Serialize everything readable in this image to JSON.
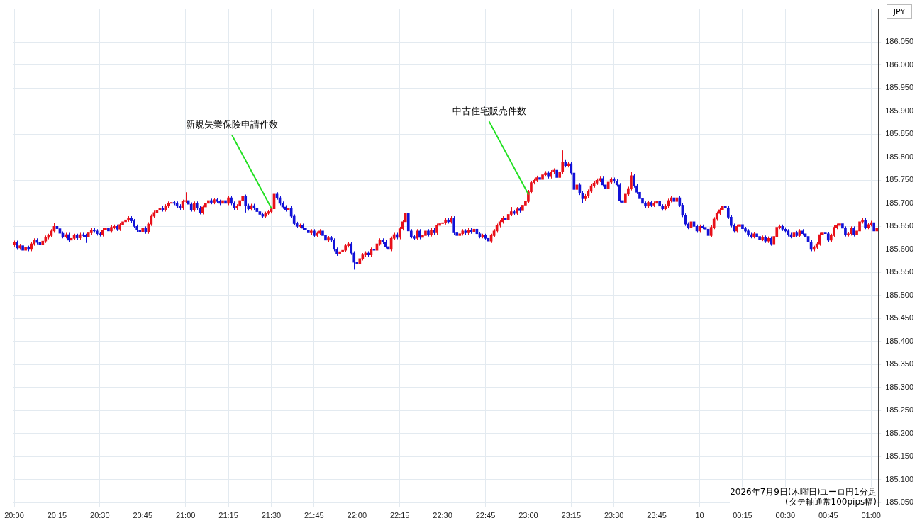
{
  "chart_data": {
    "type": "candlestick",
    "ylabel": "JPY",
    "categories": [
      "20:00",
      null,
      null,
      null,
      null,
      null,
      null,
      null,
      null,
      null,
      null,
      null,
      null,
      null,
      null,
      "20:15",
      null,
      null,
      null,
      null,
      null,
      null,
      null,
      null,
      null,
      null,
      null,
      null,
      null,
      null,
      "20:30",
      null,
      null,
      null,
      null,
      null,
      null,
      null,
      null,
      null,
      null,
      null,
      null,
      null,
      null,
      "20:45",
      null,
      null,
      null,
      null,
      null,
      null,
      null,
      null,
      null,
      null,
      null,
      null,
      null,
      null,
      "21:00",
      null,
      null,
      null,
      null,
      null,
      null,
      null,
      null,
      null,
      null,
      null,
      null,
      null,
      null,
      "21:15",
      null,
      null,
      null,
      null,
      null,
      null,
      null,
      null,
      null,
      null,
      null,
      null,
      null,
      null,
      "21:30",
      null,
      null,
      null,
      null,
      null,
      null,
      null,
      null,
      null,
      null,
      null,
      null,
      null,
      null,
      "21:45",
      null,
      null,
      null,
      null,
      null,
      null,
      null,
      null,
      null,
      null,
      null,
      null,
      null,
      null,
      "22:00",
      null,
      null,
      null,
      null,
      null,
      null,
      null,
      null,
      null,
      null,
      null,
      null,
      null,
      null,
      "22:15",
      null,
      null,
      null,
      null,
      null,
      null,
      null,
      null,
      null,
      null,
      null,
      null,
      null,
      null,
      "22:30",
      null,
      null,
      null,
      null,
      null,
      null,
      null,
      null,
      null,
      null,
      null,
      null,
      null,
      null,
      "22:45",
      null,
      null,
      null,
      null,
      null,
      null,
      null,
      null,
      null,
      null,
      null,
      null,
      null,
      null,
      "23:00",
      null,
      null,
      null,
      null,
      null,
      null,
      null,
      null,
      null,
      null,
      null,
      null,
      null,
      null,
      "23:15",
      null,
      null,
      null,
      null,
      null,
      null,
      null,
      null,
      null,
      null,
      null,
      null,
      null,
      null,
      "23:30",
      null,
      null,
      null,
      null,
      null,
      null,
      null,
      null,
      null,
      null,
      null,
      null,
      null,
      null,
      "23:45",
      null,
      null,
      null,
      null,
      null,
      null,
      null,
      null,
      null,
      null,
      null,
      null,
      null,
      null,
      "10",
      null,
      null,
      null,
      null,
      null,
      null,
      null,
      null,
      null,
      null,
      null,
      null,
      null,
      null,
      "00:15",
      null,
      null,
      null,
      null,
      null,
      null,
      null,
      null,
      null,
      null,
      null,
      null,
      null,
      null,
      "00:30",
      null,
      null,
      null,
      null,
      null,
      null,
      null,
      null,
      null,
      null,
      null,
      null,
      null,
      null,
      "00:45",
      null,
      null,
      null,
      null,
      null,
      null,
      null,
      null,
      null,
      null,
      null,
      null,
      null,
      null,
      "01:00",
      null,
      null
    ],
    "ohlc": [
      [
        185.61,
        185.619,
        185.606,
        185.615
      ],
      [
        185.615,
        185.619,
        185.599,
        185.603
      ],
      [
        185.603,
        185.612,
        185.599,
        185.608
      ],
      [
        185.608,
        185.612,
        185.594,
        185.598
      ],
      [
        185.598,
        185.608,
        185.594,
        185.604
      ],
      [
        185.604,
        185.608,
        185.596,
        185.6
      ],
      [
        185.6,
        185.616,
        185.596,
        185.612
      ],
      [
        185.612,
        185.624,
        185.608,
        185.62
      ],
      [
        185.62,
        185.624,
        185.611,
        185.615
      ],
      [
        185.615,
        185.619,
        185.606,
        185.61
      ],
      [
        185.61,
        185.622,
        185.606,
        185.618
      ],
      [
        185.618,
        185.63,
        185.614,
        185.626
      ],
      [
        185.626,
        185.634,
        185.622,
        185.63
      ],
      [
        185.63,
        185.644,
        185.626,
        185.64
      ],
      [
        185.64,
        185.658,
        185.636,
        185.65
      ],
      [
        185.65,
        185.654,
        185.641,
        185.645
      ],
      [
        185.645,
        185.649,
        185.631,
        185.635
      ],
      [
        185.635,
        185.639,
        185.624,
        185.628
      ],
      [
        185.628,
        185.636,
        185.624,
        185.632
      ],
      [
        185.632,
        185.636,
        185.616,
        185.62
      ],
      [
        185.62,
        185.628,
        185.616,
        185.624
      ],
      [
        185.624,
        185.634,
        185.62,
        185.63
      ],
      [
        185.63,
        185.634,
        185.621,
        185.625
      ],
      [
        185.625,
        185.636,
        185.621,
        185.632
      ],
      [
        185.632,
        185.636,
        185.626,
        185.63
      ],
      [
        185.63,
        185.634,
        185.614,
        185.628
      ],
      [
        185.628,
        185.64,
        185.624,
        185.636
      ],
      [
        185.636,
        185.646,
        185.632,
        185.642
      ],
      [
        185.642,
        185.646,
        185.636,
        185.64
      ],
      [
        185.64,
        185.644,
        185.63,
        185.634
      ],
      [
        185.634,
        185.638,
        185.628,
        185.632
      ],
      [
        185.632,
        185.646,
        185.628,
        185.642
      ],
      [
        185.642,
        185.65,
        185.638,
        185.646
      ],
      [
        185.646,
        185.65,
        185.636,
        185.64
      ],
      [
        185.64,
        185.652,
        185.636,
        185.648
      ],
      [
        185.648,
        185.654,
        185.644,
        185.65
      ],
      [
        185.65,
        185.654,
        185.64,
        185.644
      ],
      [
        185.644,
        185.658,
        185.64,
        185.654
      ],
      [
        185.654,
        185.664,
        185.65,
        185.66
      ],
      [
        185.66,
        185.668,
        185.656,
        185.664
      ],
      [
        185.664,
        185.672,
        185.66,
        185.668
      ],
      [
        185.668,
        185.672,
        185.658,
        185.662
      ],
      [
        185.662,
        185.666,
        185.646,
        185.65
      ],
      [
        185.65,
        185.654,
        185.638,
        185.642
      ],
      [
        185.642,
        185.646,
        185.634,
        185.638
      ],
      [
        185.638,
        185.65,
        185.634,
        185.646
      ],
      [
        185.646,
        185.65,
        185.634,
        185.638
      ],
      [
        185.638,
        185.659,
        185.634,
        185.655
      ],
      [
        185.655,
        185.676,
        185.651,
        185.672
      ],
      [
        185.672,
        185.684,
        185.668,
        185.68
      ],
      [
        185.68,
        185.689,
        185.676,
        185.685
      ],
      [
        185.685,
        185.694,
        185.681,
        185.69
      ],
      [
        185.69,
        185.694,
        185.682,
        185.686
      ],
      [
        185.686,
        185.698,
        185.682,
        185.694
      ],
      [
        185.694,
        185.704,
        185.69,
        185.7
      ],
      [
        185.7,
        185.706,
        185.696,
        185.702
      ],
      [
        185.702,
        185.706,
        185.696,
        185.7
      ],
      [
        185.7,
        185.704,
        185.69,
        185.694
      ],
      [
        185.694,
        185.698,
        185.686,
        185.69
      ],
      [
        185.69,
        185.708,
        185.686,
        185.704
      ],
      [
        185.704,
        185.724,
        185.7,
        185.706
      ],
      [
        185.706,
        185.71,
        185.694,
        185.698
      ],
      [
        185.698,
        185.702,
        185.682,
        185.686
      ],
      [
        185.686,
        185.704,
        185.682,
        185.7
      ],
      [
        185.7,
        185.704,
        185.686,
        185.69
      ],
      [
        185.69,
        185.694,
        185.676,
        185.68
      ],
      [
        185.68,
        185.696,
        185.676,
        185.692
      ],
      [
        185.692,
        185.704,
        185.688,
        185.7
      ],
      [
        185.7,
        185.71,
        185.696,
        185.706
      ],
      [
        185.706,
        185.71,
        185.698,
        185.702
      ],
      [
        185.702,
        185.712,
        185.698,
        185.708
      ],
      [
        185.708,
        185.712,
        185.7,
        185.704
      ],
      [
        185.704,
        185.708,
        185.696,
        185.7
      ],
      [
        185.7,
        185.71,
        185.696,
        185.706
      ],
      [
        185.706,
        185.71,
        185.696,
        185.7
      ],
      [
        185.7,
        185.716,
        185.696,
        185.712
      ],
      [
        185.712,
        185.716,
        185.696,
        185.7
      ],
      [
        185.7,
        185.704,
        185.686,
        185.69
      ],
      [
        185.69,
        185.698,
        185.686,
        185.694
      ],
      [
        185.694,
        185.71,
        185.69,
        185.706
      ],
      [
        185.706,
        185.722,
        185.702,
        185.715
      ],
      [
        185.715,
        185.719,
        185.68,
        185.695
      ],
      [
        185.695,
        185.699,
        185.684,
        185.688
      ],
      [
        185.688,
        185.699,
        185.684,
        185.695
      ],
      [
        185.695,
        185.699,
        185.686,
        185.69
      ],
      [
        185.69,
        185.694,
        185.678,
        185.682
      ],
      [
        185.682,
        185.686,
        185.672,
        185.676
      ],
      [
        185.676,
        185.68,
        185.668,
        185.672
      ],
      [
        185.672,
        185.682,
        185.668,
        185.678
      ],
      [
        185.678,
        185.686,
        185.674,
        185.682
      ],
      [
        185.682,
        185.692,
        185.678,
        185.688
      ],
      [
        185.688,
        185.724,
        185.684,
        185.72
      ],
      [
        185.72,
        185.724,
        185.708,
        185.712
      ],
      [
        185.712,
        185.716,
        185.696,
        185.7
      ],
      [
        185.7,
        185.704,
        185.688,
        185.692
      ],
      [
        185.692,
        185.696,
        185.682,
        185.686
      ],
      [
        185.686,
        185.694,
        185.682,
        185.69
      ],
      [
        185.69,
        185.694,
        185.668,
        185.672
      ],
      [
        185.672,
        185.676,
        185.652,
        185.656
      ],
      [
        185.656,
        185.66,
        185.646,
        185.65
      ],
      [
        185.65,
        185.656,
        185.646,
        185.652
      ],
      [
        185.652,
        185.656,
        185.642,
        185.646
      ],
      [
        185.646,
        185.65,
        185.638,
        185.642
      ],
      [
        185.642,
        185.646,
        185.632,
        185.636
      ],
      [
        185.636,
        185.644,
        185.632,
        185.64
      ],
      [
        185.64,
        185.644,
        185.626,
        185.63
      ],
      [
        185.63,
        185.639,
        185.626,
        185.635
      ],
      [
        185.635,
        185.644,
        185.631,
        185.64
      ],
      [
        185.64,
        185.644,
        185.626,
        185.63
      ],
      [
        185.63,
        185.634,
        185.616,
        185.62
      ],
      [
        185.62,
        185.629,
        185.616,
        185.625
      ],
      [
        185.625,
        185.629,
        185.616,
        185.62
      ],
      [
        185.62,
        185.624,
        185.596,
        185.6
      ],
      [
        185.6,
        185.604,
        185.586,
        185.59
      ],
      [
        185.59,
        185.599,
        185.586,
        185.595
      ],
      [
        185.595,
        185.602,
        185.591,
        185.598
      ],
      [
        185.598,
        185.612,
        185.594,
        185.608
      ],
      [
        185.608,
        185.616,
        185.604,
        185.612
      ],
      [
        185.612,
        185.616,
        185.588,
        185.592
      ],
      [
        185.592,
        185.596,
        185.556,
        185.572
      ],
      [
        185.572,
        185.576,
        185.564,
        185.568
      ],
      [
        185.568,
        185.584,
        185.564,
        185.58
      ],
      [
        185.58,
        185.592,
        185.576,
        185.588
      ],
      [
        185.588,
        185.596,
        185.584,
        185.592
      ],
      [
        185.592,
        185.596,
        185.584,
        185.588
      ],
      [
        185.588,
        185.604,
        185.584,
        185.6
      ],
      [
        185.6,
        185.604,
        185.594,
        185.598
      ],
      [
        185.598,
        185.616,
        185.594,
        185.612
      ],
      [
        185.612,
        185.624,
        185.608,
        185.62
      ],
      [
        185.62,
        185.624,
        185.612,
        185.616
      ],
      [
        185.616,
        185.62,
        185.602,
        185.606
      ],
      [
        185.606,
        185.61,
        185.596,
        185.6
      ],
      [
        185.6,
        185.628,
        185.596,
        185.624
      ],
      [
        185.624,
        185.636,
        185.62,
        185.632
      ],
      [
        185.632,
        185.636,
        185.622,
        185.626
      ],
      [
        185.626,
        185.649,
        185.622,
        185.645
      ],
      [
        185.645,
        185.664,
        185.641,
        185.66
      ],
      [
        185.66,
        185.69,
        185.656,
        185.678
      ],
      [
        185.678,
        185.682,
        185.605,
        185.64
      ],
      [
        185.64,
        185.644,
        185.624,
        185.628
      ],
      [
        185.628,
        185.632,
        185.62,
        185.624
      ],
      [
        185.624,
        185.644,
        185.62,
        185.64
      ],
      [
        185.64,
        185.644,
        185.622,
        185.626
      ],
      [
        185.626,
        185.634,
        185.622,
        185.63
      ],
      [
        185.63,
        185.644,
        185.626,
        185.64
      ],
      [
        185.64,
        185.644,
        185.628,
        185.632
      ],
      [
        185.632,
        185.646,
        185.628,
        185.642
      ],
      [
        185.642,
        185.646,
        185.632,
        185.636
      ],
      [
        185.636,
        185.656,
        185.632,
        185.652
      ],
      [
        185.652,
        185.66,
        185.648,
        185.656
      ],
      [
        185.656,
        185.662,
        185.652,
        185.658
      ],
      [
        185.658,
        185.668,
        185.654,
        185.664
      ],
      [
        185.664,
        185.668,
        185.656,
        185.66
      ],
      [
        185.66,
        185.672,
        185.656,
        185.668
      ],
      [
        185.668,
        185.672,
        185.632,
        185.636
      ],
      [
        185.636,
        185.64,
        185.626,
        185.63
      ],
      [
        185.63,
        185.638,
        185.626,
        185.634
      ],
      [
        185.634,
        185.644,
        185.63,
        185.64
      ],
      [
        185.64,
        185.644,
        185.632,
        185.636
      ],
      [
        185.636,
        185.646,
        185.632,
        185.642
      ],
      [
        185.642,
        185.646,
        185.634,
        185.638
      ],
      [
        185.638,
        185.648,
        185.634,
        185.644
      ],
      [
        185.644,
        185.648,
        185.63,
        185.634
      ],
      [
        185.634,
        185.638,
        185.624,
        185.628
      ],
      [
        185.628,
        185.634,
        185.624,
        185.63
      ],
      [
        185.63,
        185.634,
        185.62,
        185.624
      ],
      [
        185.624,
        185.628,
        185.604,
        185.618
      ],
      [
        185.618,
        185.634,
        185.614,
        185.63
      ],
      [
        185.63,
        185.644,
        185.626,
        185.64
      ],
      [
        185.64,
        185.656,
        185.636,
        185.652
      ],
      [
        185.652,
        185.664,
        185.648,
        185.66
      ],
      [
        185.66,
        185.672,
        185.656,
        185.668
      ],
      [
        185.668,
        185.672,
        185.66,
        185.664
      ],
      [
        185.664,
        185.68,
        185.66,
        185.676
      ],
      [
        185.676,
        185.692,
        185.672,
        185.682
      ],
      [
        185.682,
        185.686,
        185.674,
        185.678
      ],
      [
        185.678,
        185.692,
        185.674,
        185.688
      ],
      [
        185.688,
        185.692,
        185.68,
        185.684
      ],
      [
        185.684,
        185.7,
        185.68,
        185.696
      ],
      [
        185.696,
        185.708,
        185.692,
        185.704
      ],
      [
        185.704,
        185.729,
        185.7,
        185.725
      ],
      [
        185.725,
        185.749,
        185.721,
        185.745
      ],
      [
        185.745,
        185.754,
        185.741,
        185.75
      ],
      [
        185.75,
        185.76,
        185.746,
        185.756
      ],
      [
        185.756,
        185.76,
        185.748,
        185.752
      ],
      [
        185.752,
        185.766,
        185.748,
        185.762
      ],
      [
        185.762,
        185.77,
        185.758,
        185.766
      ],
      [
        185.766,
        185.77,
        185.754,
        185.758
      ],
      [
        185.758,
        185.772,
        185.754,
        185.768
      ],
      [
        185.768,
        185.776,
        185.764,
        185.772
      ],
      [
        185.772,
        185.776,
        185.752,
        185.756
      ],
      [
        185.756,
        185.772,
        185.752,
        185.768
      ],
      [
        185.768,
        185.815,
        185.764,
        185.79
      ],
      [
        185.79,
        185.794,
        185.778,
        185.782
      ],
      [
        185.782,
        185.79,
        185.778,
        185.786
      ],
      [
        185.786,
        185.79,
        185.762,
        185.766
      ],
      [
        185.766,
        185.77,
        185.726,
        185.73
      ],
      [
        185.73,
        185.744,
        185.726,
        185.74
      ],
      [
        185.74,
        185.744,
        185.718,
        185.722
      ],
      [
        185.722,
        185.726,
        185.7,
        185.71
      ],
      [
        185.71,
        185.72,
        185.706,
        185.716
      ],
      [
        185.716,
        185.73,
        185.712,
        185.726
      ],
      [
        185.726,
        185.742,
        185.722,
        185.738
      ],
      [
        185.738,
        185.748,
        185.734,
        185.744
      ],
      [
        185.744,
        185.754,
        185.74,
        185.75
      ],
      [
        185.75,
        185.758,
        185.746,
        185.754
      ],
      [
        185.754,
        185.758,
        185.736,
        185.74
      ],
      [
        185.74,
        185.744,
        185.728,
        185.732
      ],
      [
        185.732,
        185.75,
        185.728,
        185.746
      ],
      [
        185.746,
        185.756,
        185.742,
        185.752
      ],
      [
        185.752,
        185.756,
        185.744,
        185.748
      ],
      [
        185.748,
        185.752,
        185.736,
        185.74
      ],
      [
        185.74,
        185.744,
        185.702,
        185.706
      ],
      [
        185.706,
        185.71,
        185.698,
        185.702
      ],
      [
        185.702,
        185.724,
        185.698,
        185.72
      ],
      [
        185.72,
        185.736,
        185.716,
        185.732
      ],
      [
        185.732,
        185.768,
        185.728,
        185.76
      ],
      [
        185.76,
        185.764,
        185.734,
        185.738
      ],
      [
        185.738,
        185.742,
        185.72,
        185.724
      ],
      [
        185.724,
        185.728,
        185.706,
        185.71
      ],
      [
        185.71,
        185.714,
        185.696,
        185.7
      ],
      [
        185.7,
        185.704,
        185.69,
        185.694
      ],
      [
        185.694,
        185.706,
        185.69,
        185.702
      ],
      [
        185.702,
        185.706,
        185.692,
        185.696
      ],
      [
        185.696,
        185.704,
        185.692,
        185.7
      ],
      [
        185.7,
        185.708,
        185.696,
        185.704
      ],
      [
        185.704,
        185.708,
        185.69,
        185.694
      ],
      [
        185.694,
        185.698,
        185.684,
        185.688
      ],
      [
        185.688,
        185.698,
        185.684,
        185.694
      ],
      [
        185.694,
        185.71,
        185.69,
        185.706
      ],
      [
        185.706,
        185.716,
        185.702,
        185.712
      ],
      [
        185.712,
        185.716,
        185.7,
        185.704
      ],
      [
        185.704,
        185.716,
        185.7,
        185.712
      ],
      [
        185.712,
        185.716,
        185.692,
        185.696
      ],
      [
        185.696,
        185.7,
        185.67,
        185.674
      ],
      [
        185.674,
        185.678,
        185.651,
        185.655
      ],
      [
        185.655,
        185.659,
        185.644,
        185.648
      ],
      [
        185.648,
        185.664,
        185.644,
        185.66
      ],
      [
        185.66,
        185.664,
        185.646,
        185.65
      ],
      [
        185.65,
        185.654,
        185.636,
        185.64
      ],
      [
        185.64,
        185.654,
        185.636,
        185.65
      ],
      [
        185.65,
        185.654,
        185.644,
        185.648
      ],
      [
        185.648,
        185.652,
        185.63,
        185.644
      ],
      [
        185.644,
        185.648,
        185.626,
        185.63
      ],
      [
        185.63,
        185.652,
        185.626,
        185.648
      ],
      [
        185.648,
        185.67,
        185.644,
        185.666
      ],
      [
        185.666,
        185.682,
        185.662,
        185.678
      ],
      [
        185.678,
        185.69,
        185.674,
        185.686
      ],
      [
        185.686,
        185.698,
        185.682,
        185.694
      ],
      [
        185.694,
        185.698,
        185.686,
        185.69
      ],
      [
        185.69,
        185.694,
        185.666,
        185.67
      ],
      [
        185.67,
        185.674,
        185.648,
        185.652
      ],
      [
        185.652,
        185.656,
        185.636,
        185.64
      ],
      [
        185.64,
        185.654,
        185.636,
        185.65
      ],
      [
        185.65,
        185.658,
        185.646,
        185.654
      ],
      [
        185.654,
        185.658,
        185.641,
        185.645
      ],
      [
        185.645,
        185.649,
        185.636,
        185.64
      ],
      [
        185.64,
        185.644,
        185.628,
        185.632
      ],
      [
        185.632,
        185.636,
        185.624,
        185.628
      ],
      [
        185.628,
        185.638,
        185.624,
        185.634
      ],
      [
        185.634,
        185.638,
        185.624,
        185.628
      ],
      [
        185.628,
        185.632,
        185.618,
        185.622
      ],
      [
        185.622,
        185.63,
        185.618,
        185.626
      ],
      [
        185.626,
        185.63,
        185.614,
        185.618
      ],
      [
        185.618,
        185.628,
        185.614,
        185.624
      ],
      [
        185.624,
        185.628,
        185.608,
        185.612
      ],
      [
        185.612,
        185.632,
        185.608,
        185.628
      ],
      [
        185.628,
        185.652,
        185.624,
        185.648
      ],
      [
        185.648,
        185.654,
        185.644,
        185.65
      ],
      [
        185.65,
        185.654,
        185.64,
        185.644
      ],
      [
        185.644,
        185.648,
        185.636,
        185.64
      ],
      [
        185.64,
        185.644,
        185.628,
        185.632
      ],
      [
        185.632,
        185.636,
        185.624,
        185.628
      ],
      [
        185.628,
        185.64,
        185.624,
        185.636
      ],
      [
        185.636,
        185.64,
        185.626,
        185.63
      ],
      [
        185.63,
        185.644,
        185.626,
        185.64
      ],
      [
        185.64,
        185.644,
        185.63,
        185.634
      ],
      [
        185.634,
        185.638,
        185.624,
        185.628
      ],
      [
        185.628,
        185.632,
        185.612,
        185.616
      ],
      [
        185.616,
        185.62,
        185.596,
        185.6
      ],
      [
        185.6,
        185.608,
        185.596,
        185.604
      ],
      [
        185.604,
        185.616,
        185.6,
        185.612
      ],
      [
        185.612,
        185.636,
        185.608,
        185.632
      ],
      [
        185.632,
        185.64,
        185.628,
        185.636
      ],
      [
        185.636,
        185.64,
        185.63,
        185.634
      ],
      [
        185.634,
        185.638,
        185.616,
        185.62
      ],
      [
        185.62,
        185.634,
        185.616,
        185.63
      ],
      [
        185.63,
        185.652,
        185.626,
        185.648
      ],
      [
        185.648,
        185.656,
        185.644,
        185.652
      ],
      [
        185.652,
        185.66,
        185.648,
        185.656
      ],
      [
        185.656,
        185.66,
        185.642,
        185.646
      ],
      [
        185.646,
        185.65,
        185.628,
        185.632
      ],
      [
        185.632,
        185.638,
        185.628,
        185.634
      ],
      [
        185.634,
        185.65,
        185.63,
        185.646
      ],
      [
        185.646,
        185.65,
        185.628,
        185.632
      ],
      [
        185.632,
        185.644,
        185.628,
        185.64
      ],
      [
        185.64,
        185.664,
        185.636,
        185.66
      ],
      [
        185.66,
        185.668,
        185.656,
        185.664
      ],
      [
        185.664,
        185.668,
        185.644,
        185.648
      ],
      [
        185.648,
        185.658,
        185.644,
        185.654
      ],
      [
        185.654,
        185.662,
        185.65,
        185.658
      ],
      [
        185.658,
        185.662,
        185.636,
        185.64
      ],
      [
        185.64,
        185.65,
        185.636,
        185.646
      ]
    ],
    "colors": [
      "#e8101a",
      "#1212d8",
      "#e8101a",
      "#1212d8",
      "#e8101a",
      "#1212d8",
      "#e8101a",
      "#e8101a",
      "#1212d8",
      "#1212d8",
      "#e8101a",
      "#e8101a",
      "#e8101a",
      "#e8101a",
      "#e8101a",
      "#1212d8",
      "#1212d8",
      "#1212d8",
      "#e8101a",
      "#1212d8",
      "#e8101a",
      "#e8101a",
      "#1212d8",
      "#e8101a",
      "#1212d8",
      "#1212d8",
      "#e8101a",
      "#e8101a",
      "#1212d8",
      "#1212d8",
      "#1212d8",
      "#e8101a",
      "#e8101a",
      "#1212d8",
      "#e8101a",
      "#e8101a",
      "#1212d8",
      "#e8101a",
      "#e8101a",
      "#e8101a",
      "#e8101a",
      "#1212d8",
      "#1212d8",
      "#1212d8",
      "#1212d8",
      "#e8101a",
      "#1212d8",
      "#e8101a",
      "#e8101a",
      "#e8101a",
      "#e8101a",
      "#e8101a",
      "#1212d8",
      "#e8101a",
      "#e8101a",
      "#e8101a",
      "#1212d8",
      "#1212d8",
      "#1212d8",
      "#e8101a",
      "#e8101a",
      "#1212d8",
      "#1212d8",
      "#e8101a",
      "#1212d8",
      "#1212d8",
      "#e8101a",
      "#e8101a",
      "#e8101a",
      "#1212d8",
      "#e8101a",
      "#1212d8",
      "#1212d8",
      "#e8101a",
      "#1212d8",
      "#e8101a",
      "#1212d8",
      "#1212d8",
      "#e8101a",
      "#e8101a",
      "#e8101a",
      "#1212d8",
      "#1212d8",
      "#e8101a",
      "#1212d8",
      "#1212d8",
      "#1212d8",
      "#1212d8",
      "#e8101a",
      "#e8101a",
      "#e8101a",
      "#e8101a",
      "#1212d8",
      "#1212d8",
      "#1212d8",
      "#1212d8",
      "#e8101a",
      "#1212d8",
      "#1212d8",
      "#1212d8",
      "#e8101a",
      "#1212d8",
      "#1212d8",
      "#1212d8",
      "#e8101a",
      "#1212d8",
      "#e8101a",
      "#e8101a",
      "#1212d8",
      "#1212d8",
      "#e8101a",
      "#1212d8",
      "#1212d8",
      "#1212d8",
      "#e8101a",
      "#e8101a",
      "#e8101a",
      "#e8101a",
      "#1212d8",
      "#1212d8",
      "#1212d8",
      "#e8101a",
      "#e8101a",
      "#e8101a",
      "#1212d8",
      "#e8101a",
      "#1212d8",
      "#e8101a",
      "#e8101a",
      "#1212d8",
      "#1212d8",
      "#1212d8",
      "#e8101a",
      "#e8101a",
      "#1212d8",
      "#e8101a",
      "#e8101a",
      "#e8101a",
      "#1212d8",
      "#1212d8",
      "#1212d8",
      "#e8101a",
      "#1212d8",
      "#e8101a",
      "#e8101a",
      "#1212d8",
      "#e8101a",
      "#1212d8",
      "#e8101a",
      "#e8101a",
      "#e8101a",
      "#e8101a",
      "#1212d8",
      "#e8101a",
      "#1212d8",
      "#1212d8",
      "#e8101a",
      "#e8101a",
      "#1212d8",
      "#e8101a",
      "#1212d8",
      "#e8101a",
      "#1212d8",
      "#1212d8",
      "#e8101a",
      "#1212d8",
      "#1212d8",
      "#e8101a",
      "#e8101a",
      "#e8101a",
      "#e8101a",
      "#e8101a",
      "#1212d8",
      "#e8101a",
      "#e8101a",
      "#1212d8",
      "#e8101a",
      "#1212d8",
      "#e8101a",
      "#e8101a",
      "#e8101a",
      "#e8101a",
      "#e8101a",
      "#e8101a",
      "#1212d8",
      "#e8101a",
      "#e8101a",
      "#1212d8",
      "#e8101a",
      "#e8101a",
      "#1212d8",
      "#e8101a",
      "#e8101a",
      "#1212d8",
      "#e8101a",
      "#1212d8",
      "#1212d8",
      "#e8101a",
      "#1212d8",
      "#1212d8",
      "#e8101a",
      "#e8101a",
      "#e8101a",
      "#e8101a",
      "#e8101a",
      "#e8101a",
      "#1212d8",
      "#1212d8",
      "#e8101a",
      "#e8101a",
      "#1212d8",
      "#1212d8",
      "#1212d8",
      "#1212d8",
      "#e8101a",
      "#e8101a",
      "#e8101a",
      "#1212d8",
      "#1212d8",
      "#1212d8",
      "#1212d8",
      "#1212d8",
      "#e8101a",
      "#1212d8",
      "#e8101a",
      "#e8101a",
      "#1212d8",
      "#1212d8",
      "#e8101a",
      "#e8101a",
      "#e8101a",
      "#1212d8",
      "#e8101a",
      "#1212d8",
      "#1212d8",
      "#1212d8",
      "#1212d8",
      "#e8101a",
      "#1212d8",
      "#1212d8",
      "#e8101a",
      "#1212d8",
      "#1212d8",
      "#1212d8",
      "#e8101a",
      "#e8101a",
      "#e8101a",
      "#e8101a",
      "#e8101a",
      "#1212d8",
      "#1212d8",
      "#1212d8",
      "#1212d8",
      "#e8101a",
      "#e8101a",
      "#1212d8",
      "#1212d8",
      "#1212d8",
      "#1212d8",
      "#e8101a",
      "#1212d8",
      "#1212d8",
      "#e8101a",
      "#1212d8",
      "#e8101a",
      "#1212d8",
      "#e8101a",
      "#e8101a",
      "#e8101a",
      "#1212d8",
      "#1212d8",
      "#1212d8",
      "#1212d8",
      "#e8101a",
      "#1212d8",
      "#e8101a",
      "#1212d8",
      "#1212d8",
      "#1212d8",
      "#1212d8",
      "#e8101a",
      "#e8101a",
      "#e8101a",
      "#e8101a",
      "#1212d8",
      "#1212d8",
      "#e8101a",
      "#e8101a",
      "#e8101a",
      "#e8101a",
      "#1212d8",
      "#1212d8",
      "#e8101a",
      "#e8101a",
      "#1212d8",
      "#e8101a",
      "#e8101a",
      "#e8101a",
      "#1212d8",
      "#e8101a",
      "#e8101a",
      "#1212d8",
      "#e8101a"
    ],
    "ylim": [
      185.04,
      186.122
    ],
    "yticks": [
      {
        "value": 185.05,
        "label": "185.050"
      },
      {
        "value": 185.1,
        "label": "185.100"
      },
      {
        "value": 185.15,
        "label": "185.150"
      },
      {
        "value": 185.2,
        "label": "185.200"
      },
      {
        "value": 185.25,
        "label": "185.250"
      },
      {
        "value": 185.3,
        "label": "185.300"
      },
      {
        "value": 185.35,
        "label": "185.350"
      },
      {
        "value": 185.4,
        "label": "185.400"
      },
      {
        "value": 185.45,
        "label": "185.450"
      },
      {
        "value": 185.5,
        "label": "185.500"
      },
      {
        "value": 185.55,
        "label": "185.550"
      },
      {
        "value": 185.6,
        "label": "185.600"
      },
      {
        "value": 185.65,
        "label": "185.650"
      },
      {
        "value": 185.7,
        "label": "185.700"
      },
      {
        "value": 185.75,
        "label": "185.750"
      },
      {
        "value": 185.8,
        "label": "185.800"
      },
      {
        "value": 185.85,
        "label": "185.850"
      },
      {
        "value": 185.9,
        "label": "185.900"
      },
      {
        "value": 185.95,
        "label": "185.950"
      },
      {
        "value": 186.0,
        "label": "186.000"
      },
      {
        "value": 186.05,
        "label": "186.050"
      }
    ],
    "grid": true,
    "annotations": [
      {
        "text": "新規失業保険申請件数",
        "x": "21:30",
        "y": 185.69
      },
      {
        "text": "中古住宅販売件数",
        "x": "23:00",
        "y": 185.72
      },
      "2026年7月9日(木曜日)ユーロ円1分足",
      "(タテ軸通常100pips幅)"
    ]
  }
}
